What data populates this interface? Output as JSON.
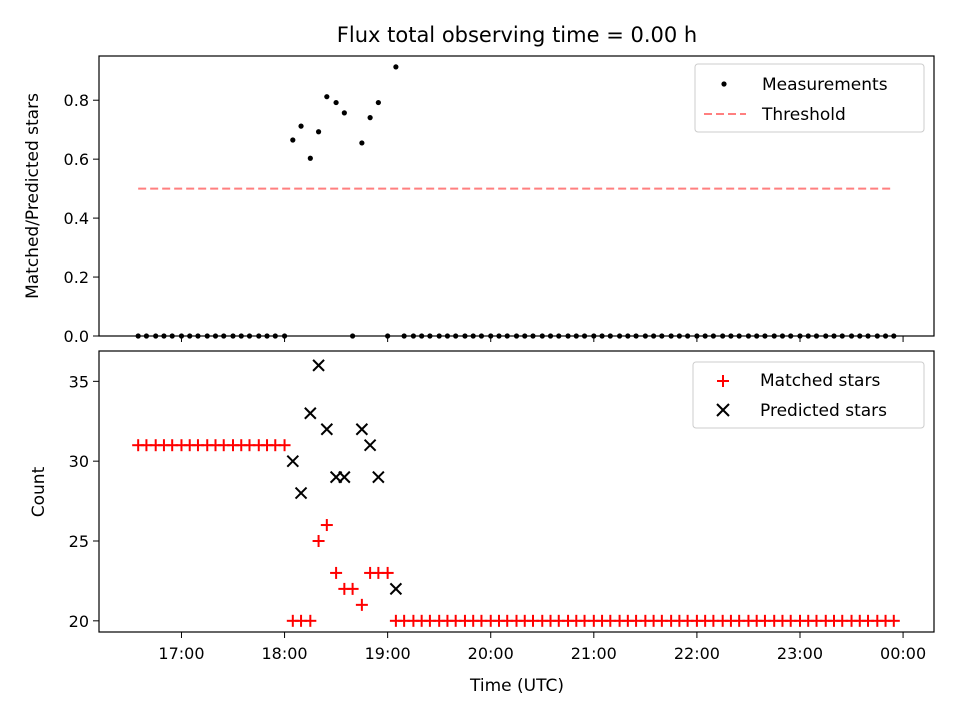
{
  "chart_data": [
    {
      "type": "scatter",
      "title": "Flux total observing time = 0.00 h",
      "xlabel": "",
      "ylabel": "Matched/Predicted stars",
      "xlim_hours": [
        16.2,
        24.3
      ],
      "ylim": [
        0,
        0.95
      ],
      "yticks": [
        0,
        0.2,
        0.4,
        0.6,
        0.8
      ],
      "ytick_labels": [
        "0.0",
        "0.2",
        "0.4",
        "0.6",
        "0.8"
      ],
      "grid": false,
      "legend": "upper-right",
      "series": [
        {
          "name": "Measurements",
          "marker": "dot",
          "color": "#000000",
          "points": [
            [
              16.58,
              0
            ],
            [
              16.66,
              0
            ],
            [
              16.75,
              0
            ],
            [
              16.83,
              0
            ],
            [
              16.91,
              0
            ],
            [
              17.0,
              0
            ],
            [
              17.08,
              0
            ],
            [
              17.16,
              0
            ],
            [
              17.25,
              0
            ],
            [
              17.33,
              0
            ],
            [
              17.41,
              0
            ],
            [
              17.5,
              0
            ],
            [
              17.58,
              0
            ],
            [
              17.66,
              0
            ],
            [
              17.75,
              0
            ],
            [
              17.83,
              0
            ],
            [
              17.91,
              0
            ],
            [
              18.0,
              0
            ],
            [
              18.08,
              0.665
            ],
            [
              18.16,
              0.712
            ],
            [
              18.25,
              0.603
            ],
            [
              18.33,
              0.693
            ],
            [
              18.41,
              0.812
            ],
            [
              18.5,
              0.792
            ],
            [
              18.58,
              0.757
            ],
            [
              18.66,
              0
            ],
            [
              18.75,
              0.655
            ],
            [
              18.83,
              0.741
            ],
            [
              18.91,
              0.792
            ],
            [
              19.0,
              0
            ],
            [
              19.08,
              0.913
            ],
            [
              19.16,
              0
            ],
            [
              19.25,
              0
            ],
            [
              19.33,
              0
            ],
            [
              19.41,
              0
            ],
            [
              19.5,
              0
            ],
            [
              19.58,
              0
            ],
            [
              19.66,
              0
            ],
            [
              19.75,
              0
            ],
            [
              19.83,
              0
            ],
            [
              19.91,
              0
            ],
            [
              20.0,
              0
            ],
            [
              20.08,
              0
            ],
            [
              20.16,
              0
            ],
            [
              20.25,
              0
            ],
            [
              20.33,
              0
            ],
            [
              20.41,
              0
            ],
            [
              20.5,
              0
            ],
            [
              20.58,
              0
            ],
            [
              20.66,
              0
            ],
            [
              20.75,
              0
            ],
            [
              20.83,
              0
            ],
            [
              20.91,
              0
            ],
            [
              21.0,
              0
            ],
            [
              21.08,
              0
            ],
            [
              21.16,
              0
            ],
            [
              21.25,
              0
            ],
            [
              21.33,
              0
            ],
            [
              21.41,
              0
            ],
            [
              21.5,
              0
            ],
            [
              21.58,
              0
            ],
            [
              21.66,
              0
            ],
            [
              21.75,
              0
            ],
            [
              21.83,
              0
            ],
            [
              21.91,
              0
            ],
            [
              22.0,
              0
            ],
            [
              22.08,
              0
            ],
            [
              22.16,
              0
            ],
            [
              22.25,
              0
            ],
            [
              22.33,
              0
            ],
            [
              22.41,
              0
            ],
            [
              22.5,
              0
            ],
            [
              22.58,
              0
            ],
            [
              22.66,
              0
            ],
            [
              22.75,
              0
            ],
            [
              22.83,
              0
            ],
            [
              22.91,
              0
            ],
            [
              23.0,
              0
            ],
            [
              23.08,
              0
            ],
            [
              23.16,
              0
            ],
            [
              23.25,
              0
            ],
            [
              23.33,
              0
            ],
            [
              23.41,
              0
            ],
            [
              23.5,
              0
            ],
            [
              23.58,
              0
            ],
            [
              23.66,
              0
            ],
            [
              23.75,
              0
            ],
            [
              23.83,
              0
            ],
            [
              23.91,
              0
            ]
          ]
        },
        {
          "name": "Threshold",
          "line": "dashed",
          "color": "#ff7f7f",
          "points": [
            [
              16.58,
              0.5
            ],
            [
              23.91,
              0.5
            ]
          ]
        }
      ]
    },
    {
      "type": "scatter",
      "title": "",
      "xlabel": "Time (UTC)",
      "ylabel": "Count",
      "xlim_hours": [
        16.2,
        24.3
      ],
      "ylim": [
        19.3,
        36.9
      ],
      "yticks": [
        20,
        25,
        30,
        35
      ],
      "ytick_labels": [
        "20",
        "25",
        "30",
        "35"
      ],
      "xticks_hours": [
        17,
        18,
        19,
        20,
        21,
        22,
        23,
        24
      ],
      "xtick_labels": [
        "17:00",
        "18:00",
        "19:00",
        "20:00",
        "21:00",
        "22:00",
        "23:00",
        "00:00"
      ],
      "grid": false,
      "legend": "upper-right",
      "series": [
        {
          "name": "Matched stars",
          "marker": "plus",
          "color": "#ff0000",
          "points": [
            [
              16.58,
              31
            ],
            [
              16.66,
              31
            ],
            [
              16.75,
              31
            ],
            [
              16.83,
              31
            ],
            [
              16.91,
              31
            ],
            [
              17.0,
              31
            ],
            [
              17.08,
              31
            ],
            [
              17.16,
              31
            ],
            [
              17.25,
              31
            ],
            [
              17.33,
              31
            ],
            [
              17.41,
              31
            ],
            [
              17.5,
              31
            ],
            [
              17.58,
              31
            ],
            [
              17.66,
              31
            ],
            [
              17.75,
              31
            ],
            [
              17.83,
              31
            ],
            [
              17.91,
              31
            ],
            [
              18.0,
              31
            ],
            [
              18.08,
              20
            ],
            [
              18.16,
              20
            ],
            [
              18.25,
              20
            ],
            [
              18.33,
              25
            ],
            [
              18.41,
              26
            ],
            [
              18.5,
              23
            ],
            [
              18.58,
              22
            ],
            [
              18.66,
              22
            ],
            [
              18.75,
              21
            ],
            [
              18.83,
              23
            ],
            [
              18.91,
              23
            ],
            [
              19.0,
              23
            ],
            [
              19.08,
              20
            ],
            [
              19.16,
              20
            ],
            [
              19.25,
              20
            ],
            [
              19.33,
              20
            ],
            [
              19.41,
              20
            ],
            [
              19.5,
              20
            ],
            [
              19.58,
              20
            ],
            [
              19.66,
              20
            ],
            [
              19.75,
              20
            ],
            [
              19.83,
              20
            ],
            [
              19.91,
              20
            ],
            [
              20.0,
              20
            ],
            [
              20.08,
              20
            ],
            [
              20.16,
              20
            ],
            [
              20.25,
              20
            ],
            [
              20.33,
              20
            ],
            [
              20.41,
              20
            ],
            [
              20.5,
              20
            ],
            [
              20.58,
              20
            ],
            [
              20.66,
              20
            ],
            [
              20.75,
              20
            ],
            [
              20.83,
              20
            ],
            [
              20.91,
              20
            ],
            [
              21.0,
              20
            ],
            [
              21.08,
              20
            ],
            [
              21.16,
              20
            ],
            [
              21.25,
              20
            ],
            [
              21.33,
              20
            ],
            [
              21.41,
              20
            ],
            [
              21.5,
              20
            ],
            [
              21.58,
              20
            ],
            [
              21.66,
              20
            ],
            [
              21.75,
              20
            ],
            [
              21.83,
              20
            ],
            [
              21.91,
              20
            ],
            [
              22.0,
              20
            ],
            [
              22.08,
              20
            ],
            [
              22.16,
              20
            ],
            [
              22.25,
              20
            ],
            [
              22.33,
              20
            ],
            [
              22.41,
              20
            ],
            [
              22.5,
              20
            ],
            [
              22.58,
              20
            ],
            [
              22.66,
              20
            ],
            [
              22.75,
              20
            ],
            [
              22.83,
              20
            ],
            [
              22.91,
              20
            ],
            [
              23.0,
              20
            ],
            [
              23.08,
              20
            ],
            [
              23.16,
              20
            ],
            [
              23.25,
              20
            ],
            [
              23.33,
              20
            ],
            [
              23.41,
              20
            ],
            [
              23.5,
              20
            ],
            [
              23.58,
              20
            ],
            [
              23.66,
              20
            ],
            [
              23.75,
              20
            ],
            [
              23.83,
              20
            ],
            [
              23.91,
              20
            ]
          ]
        },
        {
          "name": "Predicted stars",
          "marker": "x",
          "color": "#000000",
          "points": [
            [
              18.08,
              30
            ],
            [
              18.16,
              28
            ],
            [
              18.25,
              33
            ],
            [
              18.33,
              36
            ],
            [
              18.41,
              32
            ],
            [
              18.5,
              29
            ],
            [
              18.58,
              29
            ],
            [
              18.75,
              32
            ],
            [
              18.83,
              31
            ],
            [
              18.91,
              29
            ],
            [
              19.08,
              22
            ]
          ]
        }
      ]
    }
  ]
}
